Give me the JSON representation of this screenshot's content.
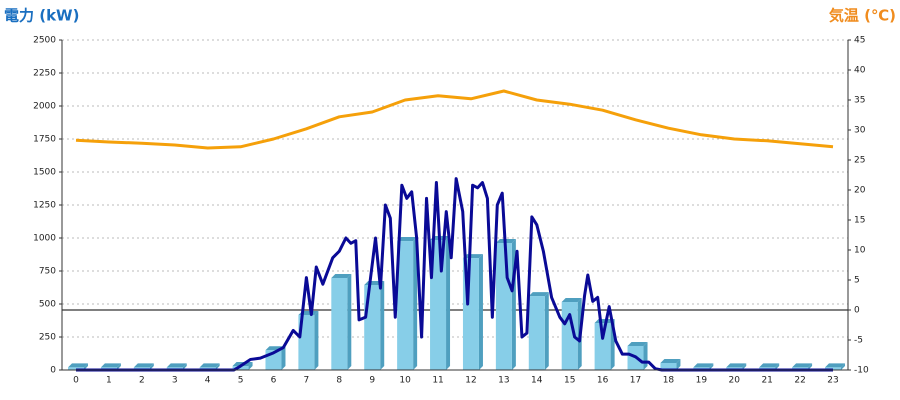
{
  "chart_data": {
    "type": "bar",
    "title": "電力 (kW)",
    "y2_title": "気温 (℃)",
    "categories": [
      "0",
      "1",
      "2",
      "3",
      "4",
      "5",
      "6",
      "7",
      "8",
      "9",
      "10",
      "11",
      "12",
      "13",
      "14",
      "15",
      "16",
      "17",
      "18",
      "19",
      "20",
      "21",
      "22",
      "23"
    ],
    "series": [
      {
        "type": "bar",
        "color": "#87cee8",
        "side_color": "#4f9fbf",
        "values": [
          20,
          20,
          20,
          20,
          20,
          30,
          150,
          417,
          697,
          644,
          977,
          985,
          848,
          962,
          560,
          515,
          356,
          182,
          53,
          20,
          20,
          20,
          20,
          20
        ]
      },
      {
        "type": "line",
        "color": "#0a0a96",
        "x": [
          0,
          4.8,
          5.0,
          5.3,
          5.6,
          6.0,
          6.3,
          6.6,
          6.8,
          7.0,
          7.15,
          7.3,
          7.5,
          7.8,
          8.0,
          8.2,
          8.35,
          8.5,
          8.6,
          8.8,
          9.0,
          9.1,
          9.25,
          9.4,
          9.55,
          9.7,
          9.9,
          10.05,
          10.2,
          10.35,
          10.5,
          10.65,
          10.8,
          10.95,
          11.1,
          11.25,
          11.4,
          11.55,
          11.75,
          11.9,
          12.05,
          12.2,
          12.35,
          12.5,
          12.65,
          12.8,
          12.95,
          13.1,
          13.25,
          13.4,
          13.55,
          13.7,
          13.85,
          14.0,
          14.2,
          14.45,
          14.7,
          14.85,
          15.0,
          15.15,
          15.3,
          15.45,
          15.55,
          15.7,
          15.85,
          16.0,
          16.2,
          16.4,
          16.6,
          16.8,
          17.0,
          17.2,
          17.4,
          17.6,
          17.8,
          23
        ],
        "values": [
          0,
          0,
          30,
          80,
          90,
          130,
          170,
          300,
          250,
          700,
          420,
          780,
          650,
          850,
          900,
          1000,
          960,
          980,
          380,
          400,
          800,
          1000,
          620,
          1250,
          1150,
          400,
          1400,
          1300,
          1350,
          1000,
          250,
          1300,
          700,
          1420,
          750,
          1200,
          850,
          1450,
          1200,
          500,
          1400,
          1380,
          1420,
          1300,
          400,
          1250,
          1340,
          700,
          600,
          900,
          250,
          280,
          1160,
          1100,
          900,
          550,
          400,
          350,
          420,
          250,
          220,
          560,
          720,
          520,
          550,
          240,
          480,
          220,
          120,
          120,
          100,
          60,
          60,
          10,
          0,
          0
        ]
      },
      {
        "type": "line",
        "axis": "y2",
        "color": "#f5a00a",
        "values": [
          28.3,
          28,
          27.8,
          27.5,
          27,
          27.2,
          28.5,
          30.2,
          32.2,
          33,
          35,
          35.7,
          35.2,
          36.5,
          35,
          34.3,
          33.3,
          31.7,
          30.3,
          29.2,
          28.5,
          28.2,
          27.7,
          27.2
        ]
      }
    ],
    "ylim": [
      0,
      2500
    ],
    "yticks": [
      0,
      250,
      500,
      750,
      1000,
      1250,
      1500,
      1750,
      2000,
      2250,
      2500
    ],
    "y2lim": [
      -10,
      45
    ],
    "y2ticks": [
      -10,
      -5,
      0,
      5,
      10,
      15,
      20,
      25,
      30,
      35,
      40,
      45
    ],
    "grid": true
  }
}
